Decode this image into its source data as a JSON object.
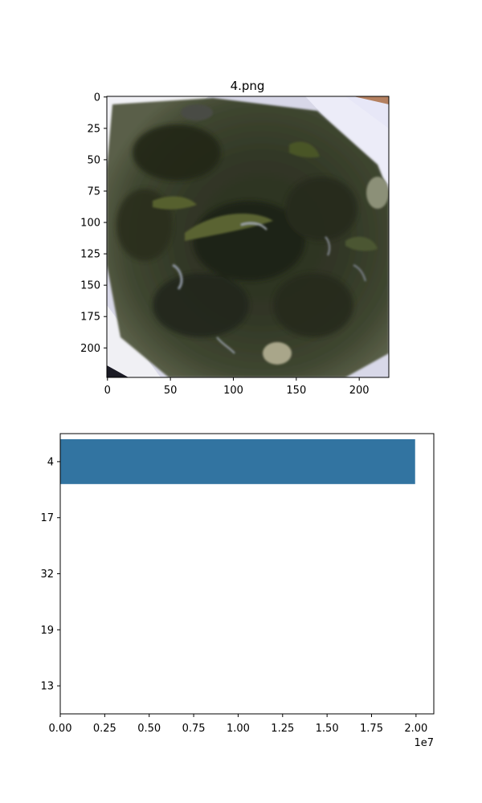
{
  "chart_data": [
    {
      "type": "image",
      "title": "4.png",
      "image_width": 224,
      "image_height": 224,
      "xticks": [
        0,
        50,
        100,
        150,
        200
      ],
      "yticks": [
        0,
        25,
        50,
        75,
        100,
        125,
        150,
        175,
        200
      ],
      "image_desc": "close-up photo of dark green seaweed soup in a white square bowl"
    },
    {
      "type": "bar",
      "orientation": "horizontal",
      "categories": [
        "4",
        "17",
        "32",
        "19",
        "13"
      ],
      "values": [
        19950000,
        0,
        0,
        0,
        0
      ],
      "xlim": [
        0,
        21000000
      ],
      "xticks": [
        0,
        2500000,
        5000000,
        7500000,
        10000000,
        12500000,
        15000000,
        17500000,
        20000000
      ],
      "xtick_labels": [
        "0.00",
        "0.25",
        "0.50",
        "0.75",
        "1.00",
        "1.25",
        "1.50",
        "1.75",
        "2.00"
      ],
      "offset_label": "1e7",
      "bar_color": "#3274a1"
    }
  ]
}
